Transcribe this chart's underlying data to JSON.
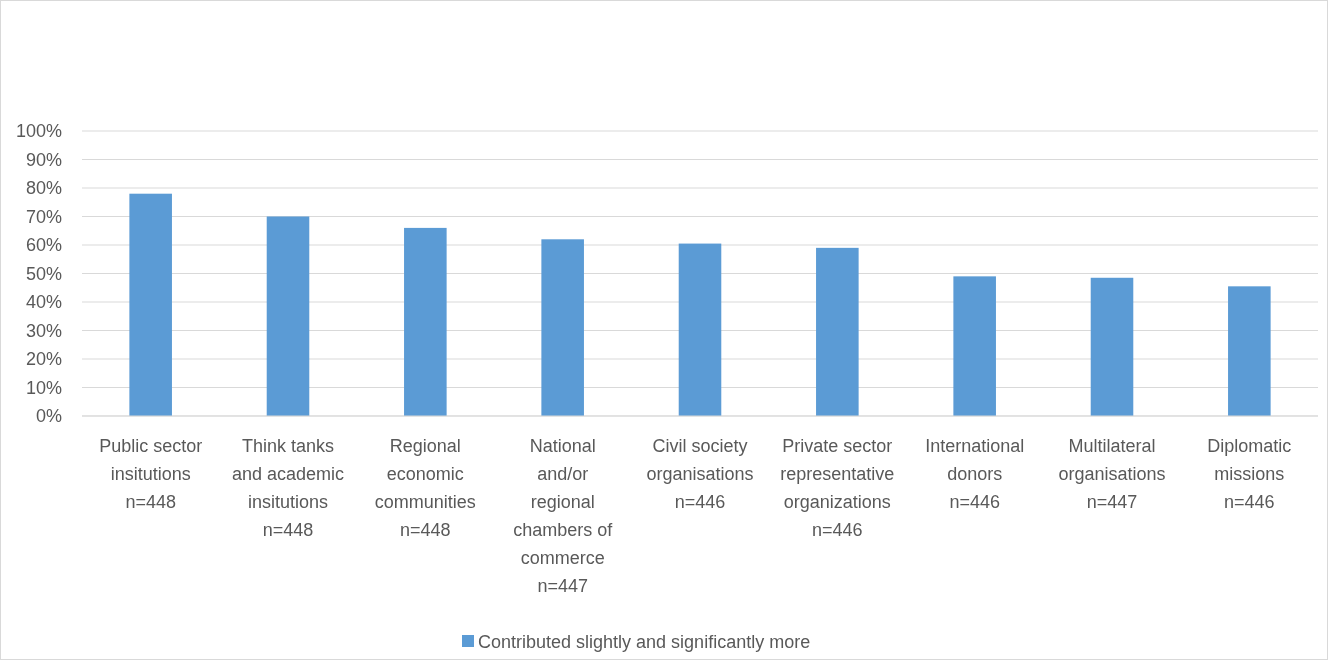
{
  "chart_data": {
    "type": "bar",
    "categories": [
      "Public sector\ninsitutions\nn=448",
      "Think tanks\nand academic\ninsitutions\nn=448",
      "Regional\neconomic\ncommunities\nn=448",
      "National\nand/or\nregional\nchambers of\ncommerce\nn=447",
      "Civil society\norganisations\nn=446",
      "Private sector\nrepresentative\norganizations\nn=446",
      "International\ndonors\nn=446",
      "Multilateral\norganisations\nn=447",
      "Diplomatic\nmissions\nn=446"
    ],
    "series": [
      {
        "name": "Contributed slightly and significantly more",
        "color": "#5b9bd5",
        "values": [
          78,
          70,
          66,
          62,
          60.5,
          59,
          49,
          48.5,
          45.5
        ]
      }
    ],
    "ylim": [
      0,
      100
    ],
    "yticks": [
      {
        "value": 0,
        "label": "0%"
      },
      {
        "value": 10,
        "label": "10%"
      },
      {
        "value": 20,
        "label": "20%"
      },
      {
        "value": 30,
        "label": "30%"
      },
      {
        "value": 40,
        "label": "40%"
      },
      {
        "value": 50,
        "label": "50%"
      },
      {
        "value": 60,
        "label": "60%"
      },
      {
        "value": 70,
        "label": "70%"
      },
      {
        "value": 80,
        "label": "80%"
      },
      {
        "value": 90,
        "label": "90%"
      },
      {
        "value": 100,
        "label": "100%"
      }
    ],
    "grid": "y",
    "legend": "bottom"
  }
}
